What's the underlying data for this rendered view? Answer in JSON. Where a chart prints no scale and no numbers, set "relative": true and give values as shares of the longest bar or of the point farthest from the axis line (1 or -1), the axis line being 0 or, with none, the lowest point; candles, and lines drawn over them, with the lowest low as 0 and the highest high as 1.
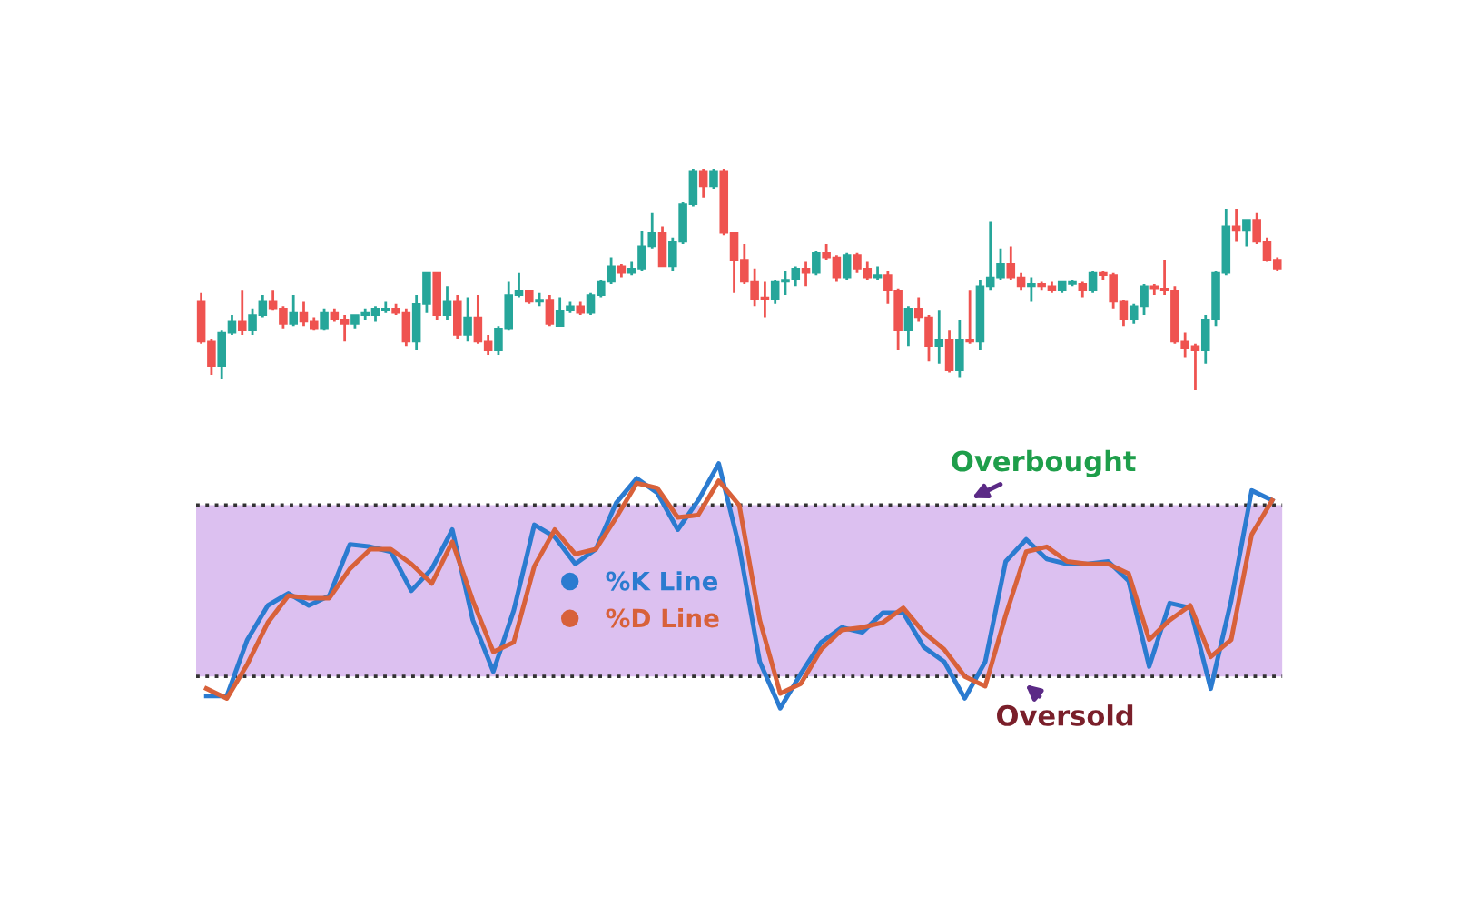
{
  "chart_data": [
    {
      "type": "candlestick",
      "relative": true,
      "tick_labels": false,
      "categories": [
        null,
        null,
        null,
        null,
        null,
        null,
        null,
        null,
        null,
        null,
        null,
        null,
        null,
        null,
        null,
        null,
        null,
        null,
        null,
        null,
        null,
        null,
        null,
        null,
        null,
        null,
        null,
        null,
        null,
        null,
        null,
        null,
        null,
        null,
        null,
        null,
        null,
        null,
        null,
        null,
        null,
        null,
        null,
        null,
        null,
        null,
        null,
        null,
        null,
        null,
        null,
        null,
        null,
        null,
        null,
        null,
        null,
        null,
        null,
        null,
        null,
        null,
        null,
        null,
        null,
        null,
        null,
        null,
        null,
        null,
        null,
        null,
        null,
        null,
        null,
        null,
        null,
        null,
        null,
        null,
        null,
        null,
        null,
        null,
        null,
        null,
        null,
        null,
        null,
        null,
        null,
        null,
        null,
        null,
        null,
        null,
        null,
        null,
        null,
        null,
        null,
        null,
        null,
        null,
        null,
        null
      ],
      "ohlc": [
        [
          0.4,
          0.44,
          0.21,
          0.22
        ],
        [
          0.22,
          0.23,
          0.07,
          0.11
        ],
        [
          0.11,
          0.27,
          0.05,
          0.26
        ],
        [
          0.26,
          0.34,
          0.25,
          0.31
        ],
        [
          0.31,
          0.45,
          0.25,
          0.27
        ],
        [
          0.27,
          0.37,
          0.25,
          0.34
        ],
        [
          0.34,
          0.43,
          0.33,
          0.4
        ],
        [
          0.4,
          0.45,
          0.36,
          0.37
        ],
        [
          0.37,
          0.38,
          0.28,
          0.3
        ],
        [
          0.3,
          0.43,
          0.29,
          0.35
        ],
        [
          0.35,
          0.4,
          0.29,
          0.31
        ],
        [
          0.31,
          0.33,
          0.27,
          0.28
        ],
        [
          0.28,
          0.37,
          0.27,
          0.35
        ],
        [
          0.35,
          0.37,
          0.31,
          0.32
        ],
        [
          0.32,
          0.34,
          0.22,
          0.3
        ],
        [
          0.3,
          0.34,
          0.28,
          0.34
        ],
        [
          0.34,
          0.37,
          0.32,
          0.35
        ],
        [
          0.34,
          0.38,
          0.31,
          0.37
        ],
        [
          0.36,
          0.4,
          0.35,
          0.37
        ],
        [
          0.37,
          0.39,
          0.34,
          0.35
        ],
        [
          0.35,
          0.37,
          0.2,
          0.22
        ],
        [
          0.22,
          0.43,
          0.18,
          0.39
        ],
        [
          0.39,
          0.53,
          0.35,
          0.53
        ],
        [
          0.53,
          0.53,
          0.32,
          0.34
        ],
        [
          0.34,
          0.47,
          0.32,
          0.4
        ],
        [
          0.4,
          0.43,
          0.23,
          0.25
        ],
        [
          0.25,
          0.42,
          0.22,
          0.33
        ],
        [
          0.33,
          0.43,
          0.21,
          0.22
        ],
        [
          0.22,
          0.25,
          0.16,
          0.18
        ],
        [
          0.18,
          0.29,
          0.16,
          0.28
        ],
        [
          0.28,
          0.49,
          0.27,
          0.43
        ],
        [
          0.43,
          0.53,
          0.42,
          0.45
        ],
        [
          0.45,
          0.45,
          0.39,
          0.4
        ],
        [
          0.4,
          0.44,
          0.38,
          0.41
        ],
        [
          0.41,
          0.43,
          0.29,
          0.3
        ],
        [
          0.29,
          0.42,
          0.29,
          0.36
        ],
        [
          0.36,
          0.4,
          0.35,
          0.38
        ],
        [
          0.38,
          0.4,
          0.34,
          0.35
        ],
        [
          0.35,
          0.44,
          0.34,
          0.43
        ],
        [
          0.43,
          0.5,
          0.42,
          0.49
        ],
        [
          0.49,
          0.6,
          0.48,
          0.56
        ],
        [
          0.56,
          0.57,
          0.51,
          0.53
        ],
        [
          0.53,
          0.58,
          0.52,
          0.55
        ],
        [
          0.55,
          0.72,
          0.54,
          0.65
        ],
        [
          0.65,
          0.8,
          0.64,
          0.71
        ],
        [
          0.71,
          0.74,
          0.56,
          0.56
        ],
        [
          0.56,
          0.69,
          0.54,
          0.67
        ],
        [
          0.67,
          0.85,
          0.66,
          0.84
        ],
        [
          0.84,
          1.0,
          0.83,
          0.99
        ],
        [
          0.99,
          1.0,
          0.87,
          0.92
        ],
        [
          0.92,
          1.0,
          0.91,
          0.99
        ],
        [
          0.99,
          1.0,
          0.7,
          0.71
        ],
        [
          0.71,
          0.71,
          0.44,
          0.59
        ],
        [
          0.59,
          0.66,
          0.48,
          0.49
        ],
        [
          0.49,
          0.55,
          0.38,
          0.41
        ],
        [
          0.42,
          0.49,
          0.33,
          0.41
        ],
        [
          0.41,
          0.5,
          0.39,
          0.49
        ],
        [
          0.49,
          0.54,
          0.43,
          0.5
        ],
        [
          0.5,
          0.56,
          0.47,
          0.55
        ],
        [
          0.55,
          0.58,
          0.47,
          0.53
        ],
        [
          0.53,
          0.63,
          0.52,
          0.62
        ],
        [
          0.62,
          0.66,
          0.59,
          0.6
        ],
        [
          0.6,
          0.61,
          0.49,
          0.51
        ],
        [
          0.51,
          0.62,
          0.5,
          0.61
        ],
        [
          0.61,
          0.62,
          0.53,
          0.55
        ],
        [
          0.55,
          0.58,
          0.5,
          0.51
        ],
        [
          0.51,
          0.56,
          0.5,
          0.52
        ],
        [
          0.52,
          0.54,
          0.39,
          0.45
        ],
        [
          0.45,
          0.46,
          0.18,
          0.27
        ],
        [
          0.27,
          0.38,
          0.2,
          0.37
        ],
        [
          0.37,
          0.42,
          0.31,
          0.33
        ],
        [
          0.33,
          0.34,
          0.13,
          0.2
        ],
        [
          0.2,
          0.36,
          0.12,
          0.23
        ],
        [
          0.23,
          0.27,
          0.08,
          0.09
        ],
        [
          0.09,
          0.32,
          0.06,
          0.23
        ],
        [
          0.23,
          0.45,
          0.21,
          0.22
        ],
        [
          0.22,
          0.5,
          0.18,
          0.47
        ],
        [
          0.47,
          0.76,
          0.45,
          0.51
        ],
        [
          0.51,
          0.64,
          0.5,
          0.57
        ],
        [
          0.57,
          0.65,
          0.5,
          0.51
        ],
        [
          0.51,
          0.53,
          0.45,
          0.47
        ],
        [
          0.47,
          0.51,
          0.4,
          0.48
        ],
        [
          0.48,
          0.49,
          0.45,
          0.47
        ],
        [
          0.47,
          0.49,
          0.44,
          0.45
        ],
        [
          0.45,
          0.49,
          0.44,
          0.49
        ],
        [
          0.48,
          0.5,
          0.47,
          0.49
        ],
        [
          0.48,
          0.49,
          0.42,
          0.45
        ],
        [
          0.45,
          0.54,
          0.44,
          0.53
        ],
        [
          0.53,
          0.54,
          0.5,
          0.52
        ],
        [
          0.52,
          0.53,
          0.37,
          0.4
        ],
        [
          0.4,
          0.41,
          0.29,
          0.32
        ],
        [
          0.32,
          0.39,
          0.3,
          0.38
        ],
        [
          0.38,
          0.48,
          0.34,
          0.47
        ],
        [
          0.47,
          0.48,
          0.43,
          0.46
        ],
        [
          0.46,
          0.59,
          0.43,
          0.45
        ],
        [
          0.45,
          0.47,
          0.21,
          0.22
        ],
        [
          0.22,
          0.26,
          0.15,
          0.19
        ],
        [
          0.2,
          0.21,
          0.0,
          0.18
        ],
        [
          0.18,
          0.34,
          0.12,
          0.32
        ],
        [
          0.32,
          0.54,
          0.29,
          0.53
        ],
        [
          0.53,
          0.82,
          0.52,
          0.74
        ],
        [
          0.74,
          0.82,
          0.67,
          0.72
        ],
        [
          0.72,
          0.77,
          0.65,
          0.77
        ],
        [
          0.77,
          0.8,
          0.66,
          0.67
        ],
        [
          0.67,
          0.69,
          0.58,
          0.59
        ],
        [
          0.59,
          0.6,
          0.54,
          0.55
        ]
      ],
      "colors": [
        "#ef5350",
        "#ef5350",
        "#26a69a",
        "#26a69a",
        "#ef5350",
        "#26a69a",
        "#26a69a",
        "#ef5350",
        "#ef5350",
        "#26a69a",
        "#ef5350",
        "#ef5350",
        "#26a69a",
        "#ef5350",
        "#ef5350",
        "#26a69a",
        "#26a69a",
        "#26a69a",
        "#26a69a",
        "#ef5350",
        "#ef5350",
        "#26a69a",
        "#26a69a",
        "#ef5350",
        "#26a69a",
        "#ef5350",
        "#26a69a",
        "#ef5350",
        "#ef5350",
        "#26a69a",
        "#26a69a",
        "#26a69a",
        "#ef5350",
        "#26a69a",
        "#ef5350",
        "#26a69a",
        "#26a69a",
        "#ef5350",
        "#26a69a",
        "#26a69a",
        "#26a69a",
        "#ef5350",
        "#26a69a",
        "#26a69a",
        "#26a69a",
        "#ef5350",
        "#26a69a",
        "#26a69a",
        "#26a69a",
        "#ef5350",
        "#26a69a",
        "#ef5350",
        "#ef5350",
        "#ef5350",
        "#ef5350",
        "#ef5350",
        "#26a69a",
        "#26a69a",
        "#26a69a",
        "#ef5350",
        "#26a69a",
        "#ef5350",
        "#ef5350",
        "#26a69a",
        "#ef5350",
        "#ef5350",
        "#26a69a",
        "#ef5350",
        "#ef5350",
        "#26a69a",
        "#ef5350",
        "#ef5350",
        "#26a69a",
        "#ef5350",
        "#26a69a",
        "#ef5350",
        "#26a69a",
        "#26a69a",
        "#26a69a",
        "#ef5350",
        "#ef5350",
        "#26a69a",
        "#ef5350",
        "#ef5350",
        "#26a69a",
        "#26a69a",
        "#ef5350",
        "#26a69a",
        "#ef5350",
        "#ef5350",
        "#ef5350",
        "#26a69a",
        "#26a69a",
        "#ef5350",
        "#ef5350",
        "#ef5350",
        "#ef5350",
        "#ef5350",
        "#26a69a",
        "#26a69a",
        "#26a69a",
        "#ef5350",
        "#26a69a",
        "#ef5350",
        "#ef5350",
        "#ef5350"
      ]
    },
    {
      "type": "line",
      "relative": true,
      "tick_labels": false,
      "legend": "center left",
      "categories": [
        null,
        null,
        null,
        null,
        null,
        null,
        null,
        null,
        null,
        null,
        null,
        null,
        null,
        null,
        null,
        null,
        null,
        null,
        null,
        null,
        null,
        null,
        null,
        null,
        null,
        null,
        null,
        null,
        null,
        null,
        null,
        null,
        null,
        null,
        null,
        null,
        null,
        null,
        null,
        null,
        null,
        null,
        null,
        null,
        null,
        null,
        null,
        null,
        null,
        null,
        null,
        null,
        null
      ],
      "series": [
        {
          "name": "%K Line",
          "color": "#2b7bd0",
          "values": [
            0.05,
            0.05,
            0.28,
            0.42,
            0.47,
            0.42,
            0.46,
            0.67,
            0.66,
            0.64,
            0.48,
            0.57,
            0.73,
            0.36,
            0.15,
            0.4,
            0.75,
            0.7,
            0.59,
            0.65,
            0.84,
            0.94,
            0.88,
            0.73,
            0.85,
            1.0,
            0.66,
            0.19,
            0.0,
            0.14,
            0.27,
            0.33,
            0.31,
            0.39,
            0.39,
            0.25,
            0.19,
            0.04,
            0.19,
            0.6,
            0.69,
            0.61,
            0.59,
            0.59,
            0.6,
            0.52,
            0.17,
            0.43,
            0.41,
            0.08,
            0.44,
            0.89,
            0.85
          ]
        },
        {
          "name": "%D Line",
          "color": "#d8613a",
          "values": [
            0.08,
            0.04,
            0.18,
            0.35,
            0.46,
            0.45,
            0.45,
            0.57,
            0.65,
            0.65,
            0.59,
            0.51,
            0.68,
            0.44,
            0.23,
            0.27,
            0.58,
            0.73,
            0.63,
            0.65,
            0.78,
            0.92,
            0.9,
            0.78,
            0.79,
            0.93,
            0.83,
            0.36,
            0.06,
            0.1,
            0.24,
            0.32,
            0.33,
            0.35,
            0.41,
            0.31,
            0.24,
            0.13,
            0.09,
            0.38,
            0.64,
            0.66,
            0.6,
            0.59,
            0.59,
            0.55,
            0.28,
            0.36,
            0.42,
            0.21,
            0.28,
            0.71,
            0.85
          ]
        }
      ],
      "bands": [
        {
          "axis": "y",
          "from": 0.13,
          "to": 0.83,
          "color": "#dcc0f0"
        }
      ],
      "ref_lines": [
        {
          "axis": "y",
          "value": 0.83,
          "label": "Overbought",
          "color": "#333333",
          "line_style": "dotted"
        },
        {
          "axis": "y",
          "value": 0.13,
          "label": "Oversold",
          "color": "#333333",
          "line_style": "dotted"
        }
      ]
    }
  ]
}
